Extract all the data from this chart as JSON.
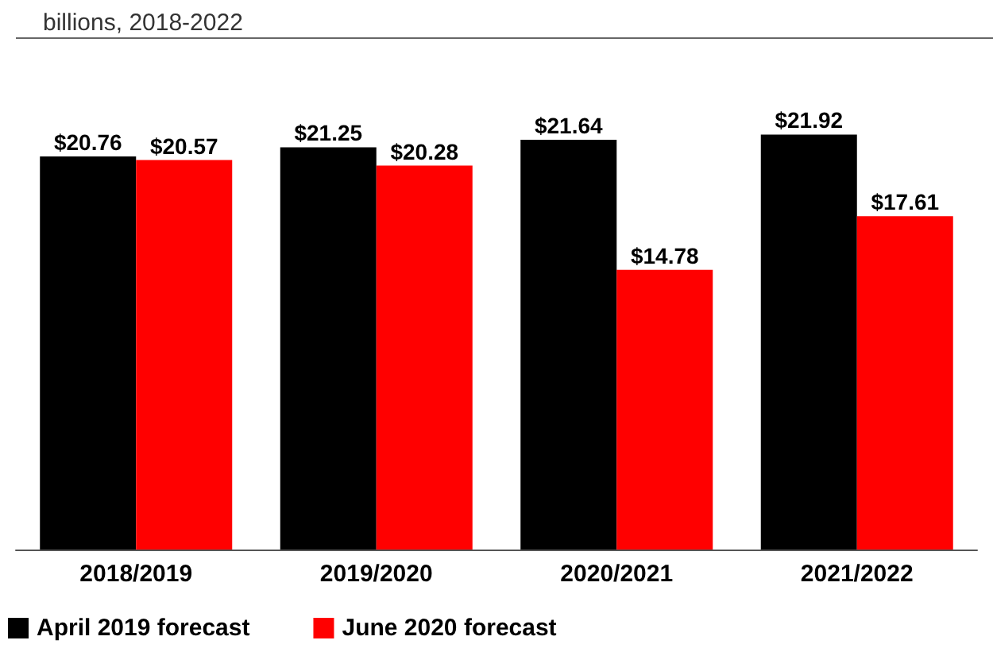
{
  "chart_data": {
    "type": "bar",
    "subtitle": "billions, 2018-2022",
    "categories": [
      "2018/2019",
      "2019/2020",
      "2020/2021",
      "2021/2022"
    ],
    "series": [
      {
        "name": "April 2019 forecast",
        "color": "#000000",
        "values": [
          20.76,
          21.25,
          21.64,
          21.92
        ],
        "value_labels": [
          "$20.76",
          "$21.25",
          "$21.64",
          "$21.92"
        ]
      },
      {
        "name": "June 2020 forecast",
        "color": "#ff0000",
        "values": [
          20.57,
          20.28,
          14.78,
          17.61
        ],
        "value_labels": [
          "$20.57",
          "$20.28",
          "$14.78",
          "$17.61"
        ]
      }
    ],
    "legend": "bottom left"
  }
}
